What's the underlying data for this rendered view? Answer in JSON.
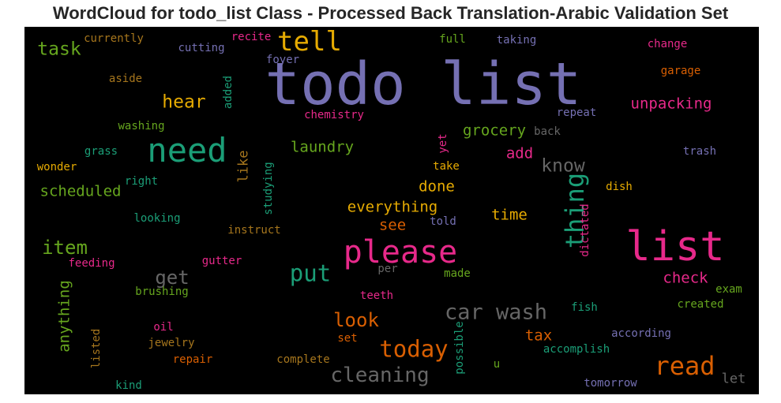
{
  "chart_data": {
    "type": "wordcloud",
    "title": "WordCloud for todo_list Class - Processed Back Translation-Arabic Validation Set",
    "background": "#000000",
    "palette": [
      "#7570b3",
      "#1b9e77",
      "#d95f02",
      "#e7298a",
      "#66a61e",
      "#e6ab02",
      "#a6761d",
      "#666666"
    ],
    "words": [
      {
        "text": "todo list",
        "weight": 1.0,
        "color": "#7570b3",
        "vertical": false
      },
      {
        "text": "list",
        "weight": 0.72,
        "color": "#e7298a",
        "vertical": false
      },
      {
        "text": "please",
        "weight": 0.55,
        "color": "#e7298a",
        "vertical": false
      },
      {
        "text": "need",
        "weight": 0.58,
        "color": "#1b9e77",
        "vertical": false
      },
      {
        "text": "tell",
        "weight": 0.47,
        "color": "#e6ab02",
        "vertical": false
      },
      {
        "text": "thing",
        "weight": 0.44,
        "color": "#1b9e77",
        "vertical": true
      },
      {
        "text": "read",
        "weight": 0.44,
        "color": "#d95f02",
        "vertical": false
      },
      {
        "text": "today",
        "weight": 0.4,
        "color": "#d95f02",
        "vertical": false
      },
      {
        "text": "put",
        "weight": 0.4,
        "color": "#1b9e77",
        "vertical": false
      },
      {
        "text": "car wash",
        "weight": 0.37,
        "color": "#666666",
        "vertical": false
      },
      {
        "text": "cleaning",
        "weight": 0.36,
        "color": "#666666",
        "vertical": false
      },
      {
        "text": "look",
        "weight": 0.33,
        "color": "#d95f02",
        "vertical": false
      },
      {
        "text": "get",
        "weight": 0.33,
        "color": "#666666",
        "vertical": false
      },
      {
        "text": "item",
        "weight": 0.33,
        "color": "#66a61e",
        "vertical": false
      },
      {
        "text": "task",
        "weight": 0.32,
        "color": "#66a61e",
        "vertical": false
      },
      {
        "text": "hear",
        "weight": 0.32,
        "color": "#e6ab02",
        "vertical": false
      },
      {
        "text": "know",
        "weight": 0.32,
        "color": "#666666",
        "vertical": false
      },
      {
        "text": "unpacking",
        "weight": 0.27,
        "color": "#e7298a",
        "vertical": false
      },
      {
        "text": "grocery",
        "weight": 0.27,
        "color": "#66a61e",
        "vertical": false
      },
      {
        "text": "laundry",
        "weight": 0.26,
        "color": "#66a61e",
        "vertical": false
      },
      {
        "text": "scheduled",
        "weight": 0.26,
        "color": "#66a61e",
        "vertical": false
      },
      {
        "text": "everything",
        "weight": 0.26,
        "color": "#e6ab02",
        "vertical": false
      },
      {
        "text": "anything",
        "weight": 0.26,
        "color": "#66a61e",
        "vertical": true
      },
      {
        "text": "add",
        "weight": 0.26,
        "color": "#e7298a",
        "vertical": false
      },
      {
        "text": "done",
        "weight": 0.26,
        "color": "#e6ab02",
        "vertical": false
      },
      {
        "text": "check",
        "weight": 0.26,
        "color": "#e7298a",
        "vertical": false
      },
      {
        "text": "time",
        "weight": 0.26,
        "color": "#e6ab02",
        "vertical": false
      },
      {
        "text": "see",
        "weight": 0.26,
        "color": "#d95f02",
        "vertical": false
      },
      {
        "text": "tax",
        "weight": 0.26,
        "color": "#d95f02",
        "vertical": false
      },
      {
        "text": "like",
        "weight": 0.24,
        "color": "#a6761d",
        "vertical": true
      },
      {
        "text": "let",
        "weight": 0.24,
        "color": "#666666",
        "vertical": false
      },
      {
        "text": "currently",
        "weight": 0.2,
        "color": "#a6761d",
        "vertical": false
      },
      {
        "text": "cutting",
        "weight": 0.2,
        "color": "#7570b3",
        "vertical": false
      },
      {
        "text": "recite",
        "weight": 0.2,
        "color": "#e7298a",
        "vertical": false
      },
      {
        "text": "full",
        "weight": 0.2,
        "color": "#66a61e",
        "vertical": false
      },
      {
        "text": "taking",
        "weight": 0.2,
        "color": "#7570b3",
        "vertical": false
      },
      {
        "text": "change",
        "weight": 0.2,
        "color": "#e7298a",
        "vertical": false
      },
      {
        "text": "foyer",
        "weight": 0.2,
        "color": "#7570b3",
        "vertical": false
      },
      {
        "text": "garage",
        "weight": 0.2,
        "color": "#d95f02",
        "vertical": false
      },
      {
        "text": "aside",
        "weight": 0.2,
        "color": "#a6761d",
        "vertical": false
      },
      {
        "text": "added",
        "weight": 0.2,
        "color": "#1b9e77",
        "vertical": true
      },
      {
        "text": "repeat",
        "weight": 0.2,
        "color": "#7570b3",
        "vertical": false
      },
      {
        "text": "chemistry",
        "weight": 0.2,
        "color": "#e7298a",
        "vertical": false
      },
      {
        "text": "washing",
        "weight": 0.2,
        "color": "#66a61e",
        "vertical": false
      },
      {
        "text": "back",
        "weight": 0.2,
        "color": "#666666",
        "vertical": false
      },
      {
        "text": "yet",
        "weight": 0.2,
        "color": "#e7298a",
        "vertical": true
      },
      {
        "text": "grass",
        "weight": 0.2,
        "color": "#1b9e77",
        "vertical": false
      },
      {
        "text": "trash",
        "weight": 0.2,
        "color": "#7570b3",
        "vertical": false
      },
      {
        "text": "wonder",
        "weight": 0.2,
        "color": "#e6ab02",
        "vertical": false
      },
      {
        "text": "studying",
        "weight": 0.2,
        "color": "#1b9e77",
        "vertical": true
      },
      {
        "text": "take",
        "weight": 0.2,
        "color": "#e6ab02",
        "vertical": false
      },
      {
        "text": "right",
        "weight": 0.2,
        "color": "#1b9e77",
        "vertical": false
      },
      {
        "text": "dish",
        "weight": 0.2,
        "color": "#e6ab02",
        "vertical": false
      },
      {
        "text": "looking",
        "weight": 0.2,
        "color": "#1b9e77",
        "vertical": false
      },
      {
        "text": "told",
        "weight": 0.2,
        "color": "#7570b3",
        "vertical": false
      },
      {
        "text": "instruct",
        "weight": 0.2,
        "color": "#a6761d",
        "vertical": false
      },
      {
        "text": "dictated",
        "weight": 0.2,
        "color": "#e7298a",
        "vertical": true
      },
      {
        "text": "feeding",
        "weight": 0.2,
        "color": "#e7298a",
        "vertical": false
      },
      {
        "text": "gutter",
        "weight": 0.2,
        "color": "#e7298a",
        "vertical": false
      },
      {
        "text": "per",
        "weight": 0.2,
        "color": "#666666",
        "vertical": false
      },
      {
        "text": "made",
        "weight": 0.2,
        "color": "#66a61e",
        "vertical": false
      },
      {
        "text": "brushing",
        "weight": 0.2,
        "color": "#66a61e",
        "vertical": false
      },
      {
        "text": "teeth",
        "weight": 0.2,
        "color": "#e7298a",
        "vertical": false
      },
      {
        "text": "exam",
        "weight": 0.2,
        "color": "#66a61e",
        "vertical": false
      },
      {
        "text": "created",
        "weight": 0.2,
        "color": "#66a61e",
        "vertical": false
      },
      {
        "text": "fish",
        "weight": 0.2,
        "color": "#1b9e77",
        "vertical": false
      },
      {
        "text": "oil",
        "weight": 0.2,
        "color": "#e7298a",
        "vertical": false
      },
      {
        "text": "according",
        "weight": 0.2,
        "color": "#7570b3",
        "vertical": false
      },
      {
        "text": "set",
        "weight": 0.2,
        "color": "#d95f02",
        "vertical": false
      },
      {
        "text": "jewelry",
        "weight": 0.2,
        "color": "#a6761d",
        "vertical": false
      },
      {
        "text": "accomplish",
        "weight": 0.2,
        "color": "#1b9e77",
        "vertical": false
      },
      {
        "text": "possible",
        "weight": 0.2,
        "color": "#1b9e77",
        "vertical": true
      },
      {
        "text": "listed",
        "weight": 0.2,
        "color": "#a6761d",
        "vertical": true
      },
      {
        "text": "repair",
        "weight": 0.2,
        "color": "#d95f02",
        "vertical": false
      },
      {
        "text": "complete",
        "weight": 0.2,
        "color": "#a6761d",
        "vertical": false
      },
      {
        "text": "u",
        "weight": 0.2,
        "color": "#66a61e",
        "vertical": false
      },
      {
        "text": "kind",
        "weight": 0.2,
        "color": "#1b9e77",
        "vertical": false
      },
      {
        "text": "tomorrow",
        "weight": 0.2,
        "color": "#7570b3",
        "vertical": false
      }
    ]
  }
}
